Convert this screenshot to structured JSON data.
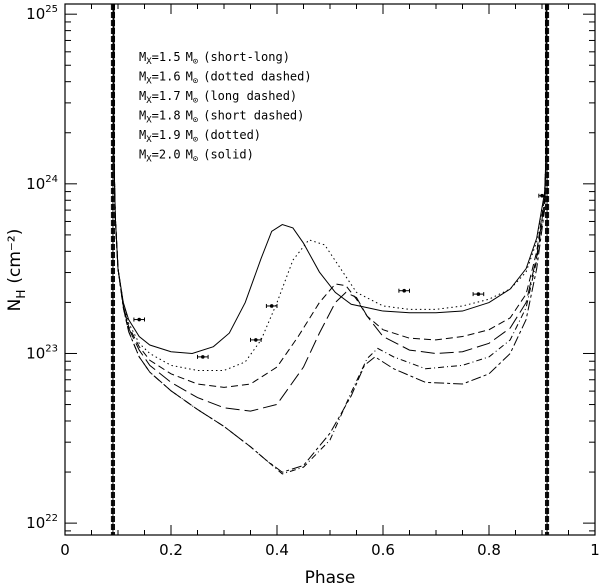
{
  "chart_data": {
    "type": "line",
    "xlabel": "Phase",
    "ylabel": "N",
    "ylabel_sub": "H",
    "ylabel_units": "(cm⁻²)",
    "xlim": [
      0,
      1
    ],
    "ylim_log10": [
      21.93,
      25.06
    ],
    "x_ticks": [
      0,
      0.2,
      0.4,
      0.6,
      0.8,
      1
    ],
    "x_tick_labels": [
      "0",
      "0.2",
      "0.4",
      "0.6",
      "0.8",
      "1"
    ],
    "y_major_ticks_log10": [
      22,
      23,
      24,
      25
    ],
    "y_tick_base": "10",
    "y_tick_exponents": [
      "22",
      "23",
      "24",
      "25"
    ],
    "eclipse_phases": [
      0.0905,
      0.9095
    ],
    "series": [
      {
        "name": "Mx=1.5 (short-long)",
        "dash": "10,3,3,3",
        "x": [
          0.092,
          0.095,
          0.1,
          0.11,
          0.12,
          0.14,
          0.16,
          0.2,
          0.25,
          0.3,
          0.35,
          0.38,
          0.41,
          0.45,
          0.5,
          0.54,
          0.565,
          0.585,
          0.62,
          0.68,
          0.75,
          0.8,
          0.84,
          0.87,
          0.89,
          0.905,
          0.908
        ],
        "y": [
          24.2,
          23.8,
          23.5,
          23.27,
          23.13,
          22.98,
          22.89,
          22.78,
          22.67,
          22.57,
          22.45,
          22.37,
          22.3,
          22.34,
          22.53,
          22.75,
          22.93,
          22.98,
          22.91,
          22.83,
          22.82,
          22.88,
          23.0,
          23.2,
          23.5,
          23.85,
          24.2
        ]
      },
      {
        "name": "Mx=1.6 (dotted dashed)",
        "dash": "1,3,6,3",
        "x": [
          0.092,
          0.095,
          0.1,
          0.11,
          0.12,
          0.14,
          0.16,
          0.2,
          0.25,
          0.3,
          0.35,
          0.38,
          0.41,
          0.45,
          0.5,
          0.54,
          0.57,
          0.59,
          0.62,
          0.68,
          0.75,
          0.8,
          0.84,
          0.87,
          0.89,
          0.905,
          0.908
        ],
        "y": [
          24.2,
          23.8,
          23.5,
          23.27,
          23.13,
          22.98,
          22.89,
          22.78,
          22.67,
          22.57,
          22.45,
          22.37,
          22.29,
          22.33,
          22.49,
          22.77,
          22.97,
          23.03,
          22.98,
          22.91,
          22.93,
          22.98,
          23.08,
          23.27,
          23.55,
          23.88,
          24.2
        ]
      },
      {
        "name": "Mx=1.7 (long dashed)",
        "dash": "14,5",
        "x": [
          0.092,
          0.095,
          0.1,
          0.11,
          0.12,
          0.14,
          0.16,
          0.2,
          0.25,
          0.3,
          0.35,
          0.4,
          0.45,
          0.48,
          0.51,
          0.53,
          0.55,
          0.57,
          0.6,
          0.65,
          0.7,
          0.75,
          0.8,
          0.84,
          0.87,
          0.89,
          0.905,
          0.908
        ],
        "y": [
          24.2,
          23.8,
          23.5,
          23.28,
          23.15,
          23.02,
          22.93,
          22.83,
          22.74,
          22.68,
          22.66,
          22.7,
          22.92,
          23.12,
          23.3,
          23.36,
          23.33,
          23.22,
          23.1,
          23.02,
          23.0,
          23.01,
          23.06,
          23.15,
          23.3,
          23.57,
          23.9,
          24.2
        ]
      },
      {
        "name": "Mx=1.8 (short dashed)",
        "dash": "7,4",
        "x": [
          0.092,
          0.095,
          0.1,
          0.11,
          0.12,
          0.14,
          0.16,
          0.2,
          0.25,
          0.3,
          0.35,
          0.4,
          0.44,
          0.48,
          0.51,
          0.53,
          0.55,
          0.57,
          0.6,
          0.65,
          0.7,
          0.75,
          0.8,
          0.84,
          0.87,
          0.89,
          0.905,
          0.908
        ],
        "y": [
          24.2,
          23.8,
          23.5,
          23.28,
          23.16,
          23.04,
          22.96,
          22.88,
          22.82,
          22.8,
          22.82,
          22.92,
          23.1,
          23.3,
          23.41,
          23.4,
          23.32,
          23.22,
          23.14,
          23.09,
          23.08,
          23.1,
          23.14,
          23.21,
          23.35,
          23.6,
          23.92,
          24.2
        ]
      },
      {
        "name": "Mx=1.9 (dotted)",
        "dash": "1.5,3",
        "x": [
          0.092,
          0.095,
          0.1,
          0.11,
          0.12,
          0.14,
          0.16,
          0.2,
          0.25,
          0.3,
          0.34,
          0.37,
          0.4,
          0.43,
          0.46,
          0.49,
          0.52,
          0.55,
          0.6,
          0.65,
          0.7,
          0.75,
          0.8,
          0.84,
          0.87,
          0.89,
          0.905,
          0.908
        ],
        "y": [
          24.2,
          23.8,
          23.5,
          23.3,
          23.18,
          23.06,
          23.0,
          22.93,
          22.9,
          22.9,
          22.95,
          23.08,
          23.3,
          23.55,
          23.67,
          23.64,
          23.5,
          23.36,
          23.28,
          23.26,
          23.26,
          23.28,
          23.32,
          23.38,
          23.48,
          23.66,
          23.95,
          24.2
        ]
      },
      {
        "name": "Mx=2.0 (solid)",
        "dash": "",
        "x": [
          0.092,
          0.095,
          0.1,
          0.11,
          0.12,
          0.14,
          0.16,
          0.2,
          0.24,
          0.28,
          0.31,
          0.34,
          0.37,
          0.39,
          0.41,
          0.43,
          0.45,
          0.48,
          0.51,
          0.54,
          0.57,
          0.6,
          0.65,
          0.7,
          0.75,
          0.8,
          0.84,
          0.87,
          0.89,
          0.905,
          0.908
        ],
        "y": [
          24.2,
          23.8,
          23.5,
          23.3,
          23.2,
          23.1,
          23.05,
          23.01,
          23.0,
          23.04,
          23.12,
          23.3,
          23.56,
          23.72,
          23.76,
          23.74,
          23.65,
          23.48,
          23.36,
          23.29,
          23.27,
          23.25,
          23.24,
          23.24,
          23.25,
          23.3,
          23.38,
          23.5,
          23.68,
          23.95,
          24.2
        ]
      }
    ],
    "data_points": {
      "x": [
        0.14,
        0.26,
        0.36,
        0.39,
        0.64,
        0.78,
        0.9
      ],
      "y": [
        23.2,
        22.98,
        23.08,
        23.28,
        23.37,
        23.35,
        23.93
      ],
      "x_err": [
        0.01,
        0.01,
        0.01,
        0.01,
        0.01,
        0.01,
        0.006
      ]
    },
    "legend": [
      {
        "prefix": "M",
        "sub": "X",
        "value": "=1.5",
        "unit": "M",
        "unit_sub": "⊙",
        "style": "(short-long)"
      },
      {
        "prefix": "M",
        "sub": "X",
        "value": "=1.6",
        "unit": "M",
        "unit_sub": "⊙",
        "style": "(dotted dashed)"
      },
      {
        "prefix": "M",
        "sub": "X",
        "value": "=1.7",
        "unit": "M",
        "unit_sub": "⊙",
        "style": "(long dashed)"
      },
      {
        "prefix": "M",
        "sub": "X",
        "value": "=1.8",
        "unit": "M",
        "unit_sub": "⊙",
        "style": "(short dashed)"
      },
      {
        "prefix": "M",
        "sub": "X",
        "value": "=1.9",
        "unit": "M",
        "unit_sub": "⊙",
        "style": "(dotted)"
      },
      {
        "prefix": "M",
        "sub": "X",
        "value": "=2.0",
        "unit": "M",
        "unit_sub": "⊙",
        "style": "(solid)"
      }
    ],
    "legend_position": "top-left"
  }
}
